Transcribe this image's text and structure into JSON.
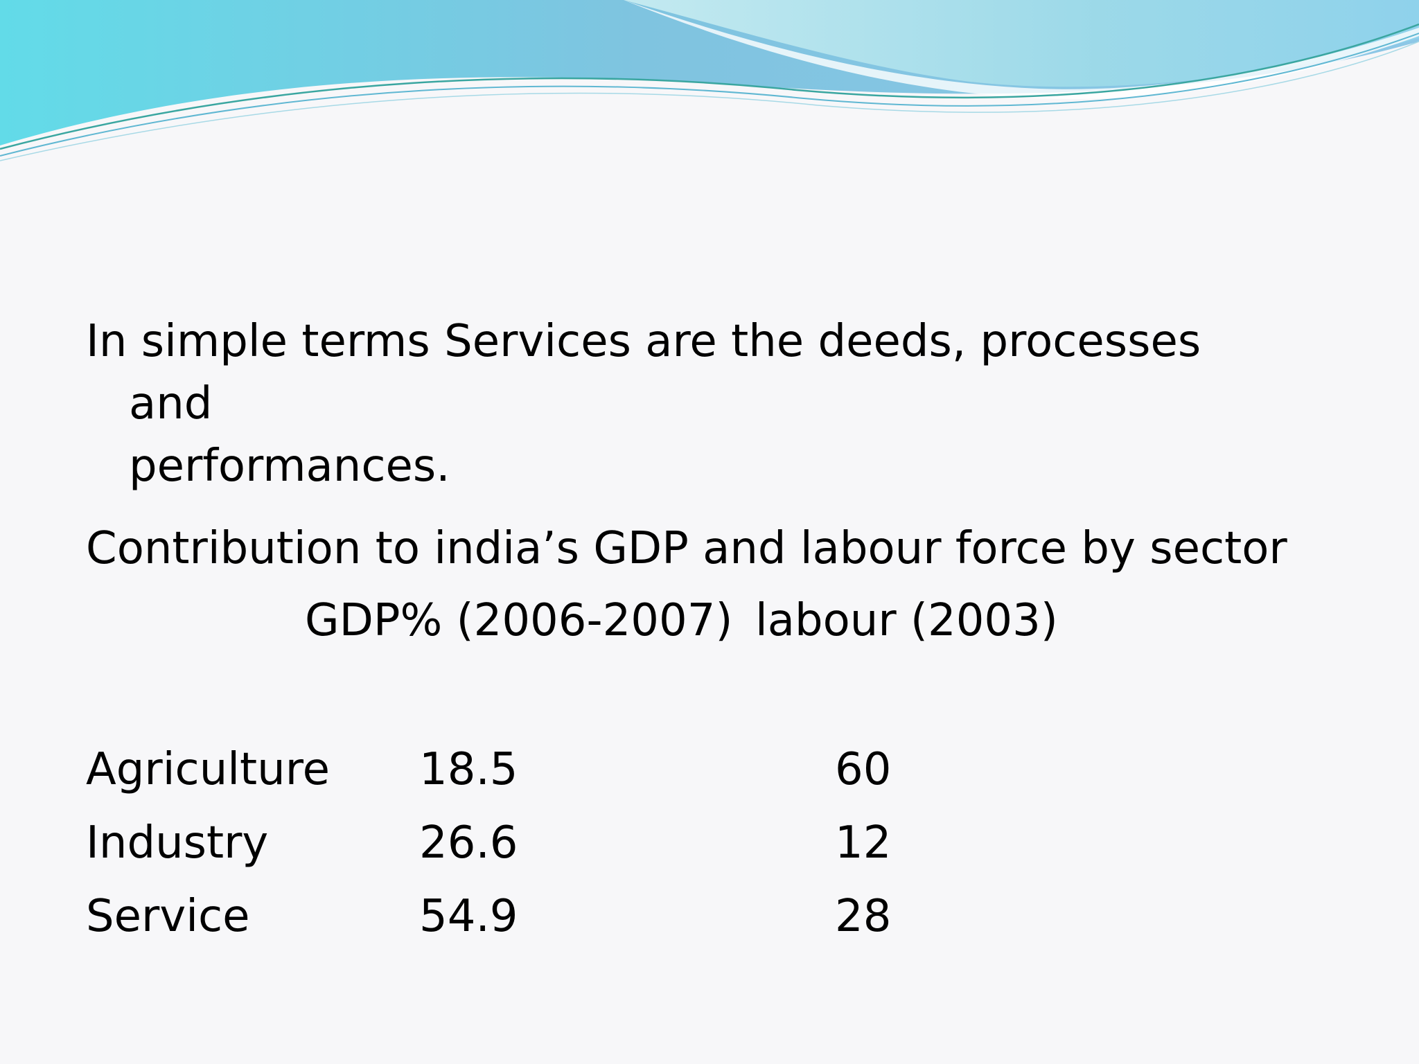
{
  "slide": {
    "intro_line1": "In simple terms Services are the deeds, processes and",
    "intro_line2": "performances.",
    "heading": "Contribution to india’s GDP and labour force by sector",
    "columns": {
      "gdp": "GDP% (2006-2007)",
      "labour": "labour (2003)"
    },
    "rows": [
      {
        "sector": "Agriculture",
        "gdp": "18.5",
        "labour": "60"
      },
      {
        "sector": "Industry",
        "gdp": "26.6",
        "labour": "12"
      },
      {
        "sector": "Service",
        "gdp": "54.9",
        "labour": "28"
      }
    ]
  },
  "theme": {
    "background": "#f7f7f9",
    "wave_colors": [
      "#5fd3e6",
      "#8ec7e3",
      "#bfe6ef",
      "#3aa6a0"
    ]
  }
}
